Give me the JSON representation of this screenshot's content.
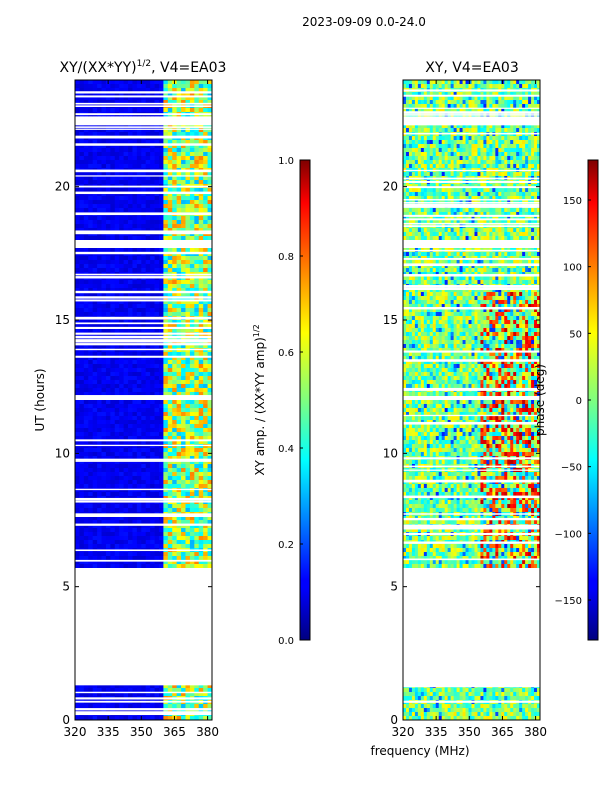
{
  "chart_data": {
    "type": "heatmap",
    "title": "2023-09-09 0.0-24.0",
    "xlabel": "frequency (MHz)",
    "panels": [
      {
        "title_main": "XY/(XX*YY)",
        "title_exp": "1/2",
        "title_suffix": ", V4=EA03",
        "ylabel": "UT (hours)",
        "xlim": [
          320,
          382
        ],
        "ylim": [
          0,
          24
        ],
        "xticks": [
          320,
          335,
          350,
          365,
          380
        ],
        "yticks": [
          0,
          5,
          10,
          15,
          20
        ],
        "data_gaps_hours": [
          [
            1.3,
            5.7
          ],
          [
            17.7,
            18.0
          ],
          [
            22.3,
            22.6
          ],
          [
            12.0,
            12.15
          ]
        ]
      },
      {
        "title_main": "XY, V4=EA03",
        "title_exp": "",
        "title_suffix": "",
        "ylabel": "",
        "xlim": [
          320,
          382
        ],
        "ylim": [
          0,
          24
        ],
        "xticks": [
          320,
          335,
          350,
          365,
          380
        ],
        "yticks": [
          0,
          5,
          10,
          15,
          20
        ],
        "data_gaps_hours": [
          [
            1.3,
            5.7
          ],
          [
            17.7,
            18.0
          ],
          [
            22.3,
            22.6
          ],
          [
            12.0,
            12.15
          ]
        ]
      }
    ],
    "colorbars": [
      {
        "label_main": "XY amp. / (XX*YY amp)",
        "label_exp": "1/2",
        "vmin": 0.0,
        "vmax": 1.0,
        "ticks": [
          "0.0",
          "0.2",
          "0.4",
          "0.6",
          "0.8",
          "1.0"
        ],
        "tick_values": [
          0.0,
          0.2,
          0.4,
          0.6,
          0.8,
          1.0
        ]
      },
      {
        "label_main": "phase (deg)",
        "label_exp": "",
        "vmin": -180,
        "vmax": 180,
        "ticks": [
          "−150",
          "−100",
          "−50",
          "0",
          "50",
          "100",
          "150"
        ],
        "tick_values": [
          -150,
          -100,
          -50,
          0,
          50,
          100,
          150
        ]
      }
    ]
  }
}
